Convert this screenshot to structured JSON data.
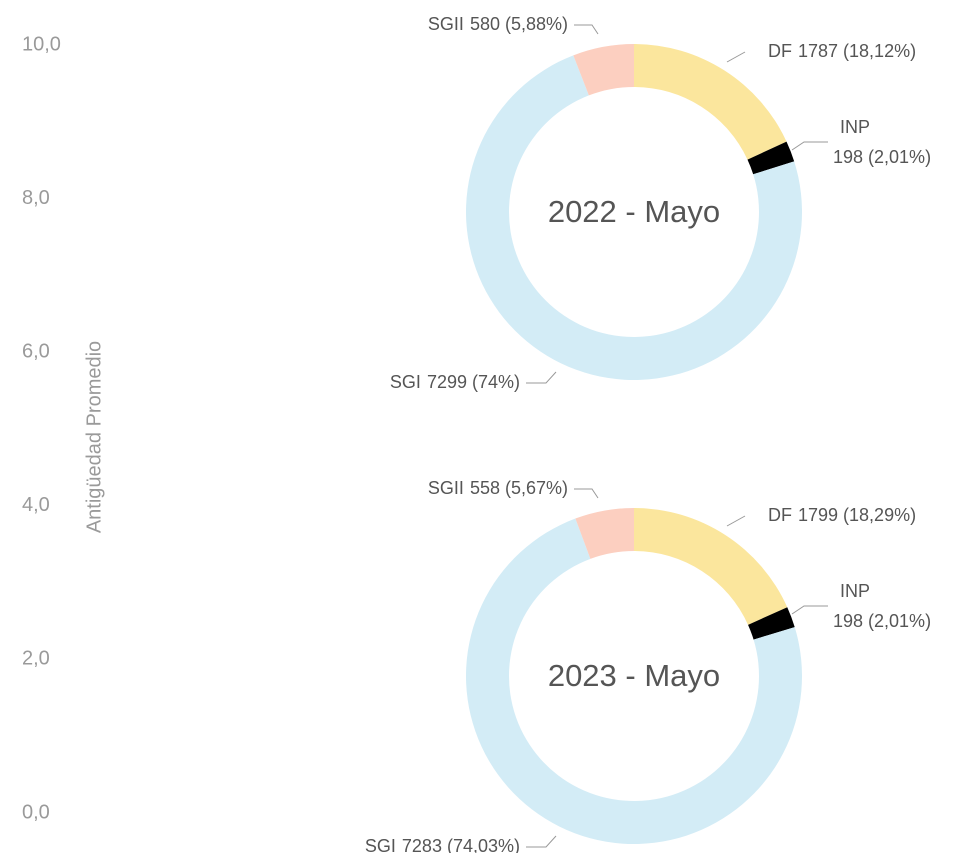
{
  "chart_data": [
    {
      "type": "axis",
      "ylabel": "Antigüedad Promedio",
      "ylim": [
        0,
        10
      ],
      "yticks": [
        {
          "value": 0,
          "label": "0,0"
        },
        {
          "value": 2,
          "label": "2,0"
        },
        {
          "value": 4,
          "label": "4,0"
        },
        {
          "value": 6,
          "label": "6,0"
        },
        {
          "value": 8,
          "label": "8,0"
        },
        {
          "value": 10,
          "label": "10,0"
        }
      ]
    },
    {
      "type": "donut",
      "title": "2022 - Mayo",
      "categories": [
        "DF",
        "INP",
        "SGI",
        "SGII"
      ],
      "values": [
        1787,
        198,
        7299,
        580
      ],
      "value_labels": [
        "1787 (18,12%)",
        "198 (2,01%)",
        "7299 (74%)",
        "580 (5,88%)"
      ],
      "colors": [
        "#fbe69d",
        "#000000",
        "#d3ecf6",
        "#fccfc0"
      ]
    },
    {
      "type": "donut",
      "title": "2023 - Mayo",
      "categories": [
        "DF",
        "INP",
        "SGI",
        "SGII"
      ],
      "values": [
        1799,
        198,
        7283,
        558
      ],
      "value_labels": [
        "1799 (18,29%)",
        "198 (2,01%)",
        "7283 (74,03%)",
        "558 (5,67%)"
      ],
      "colors": [
        "#fbe69d",
        "#000000",
        "#d3ecf6",
        "#fccfc0"
      ]
    }
  ]
}
